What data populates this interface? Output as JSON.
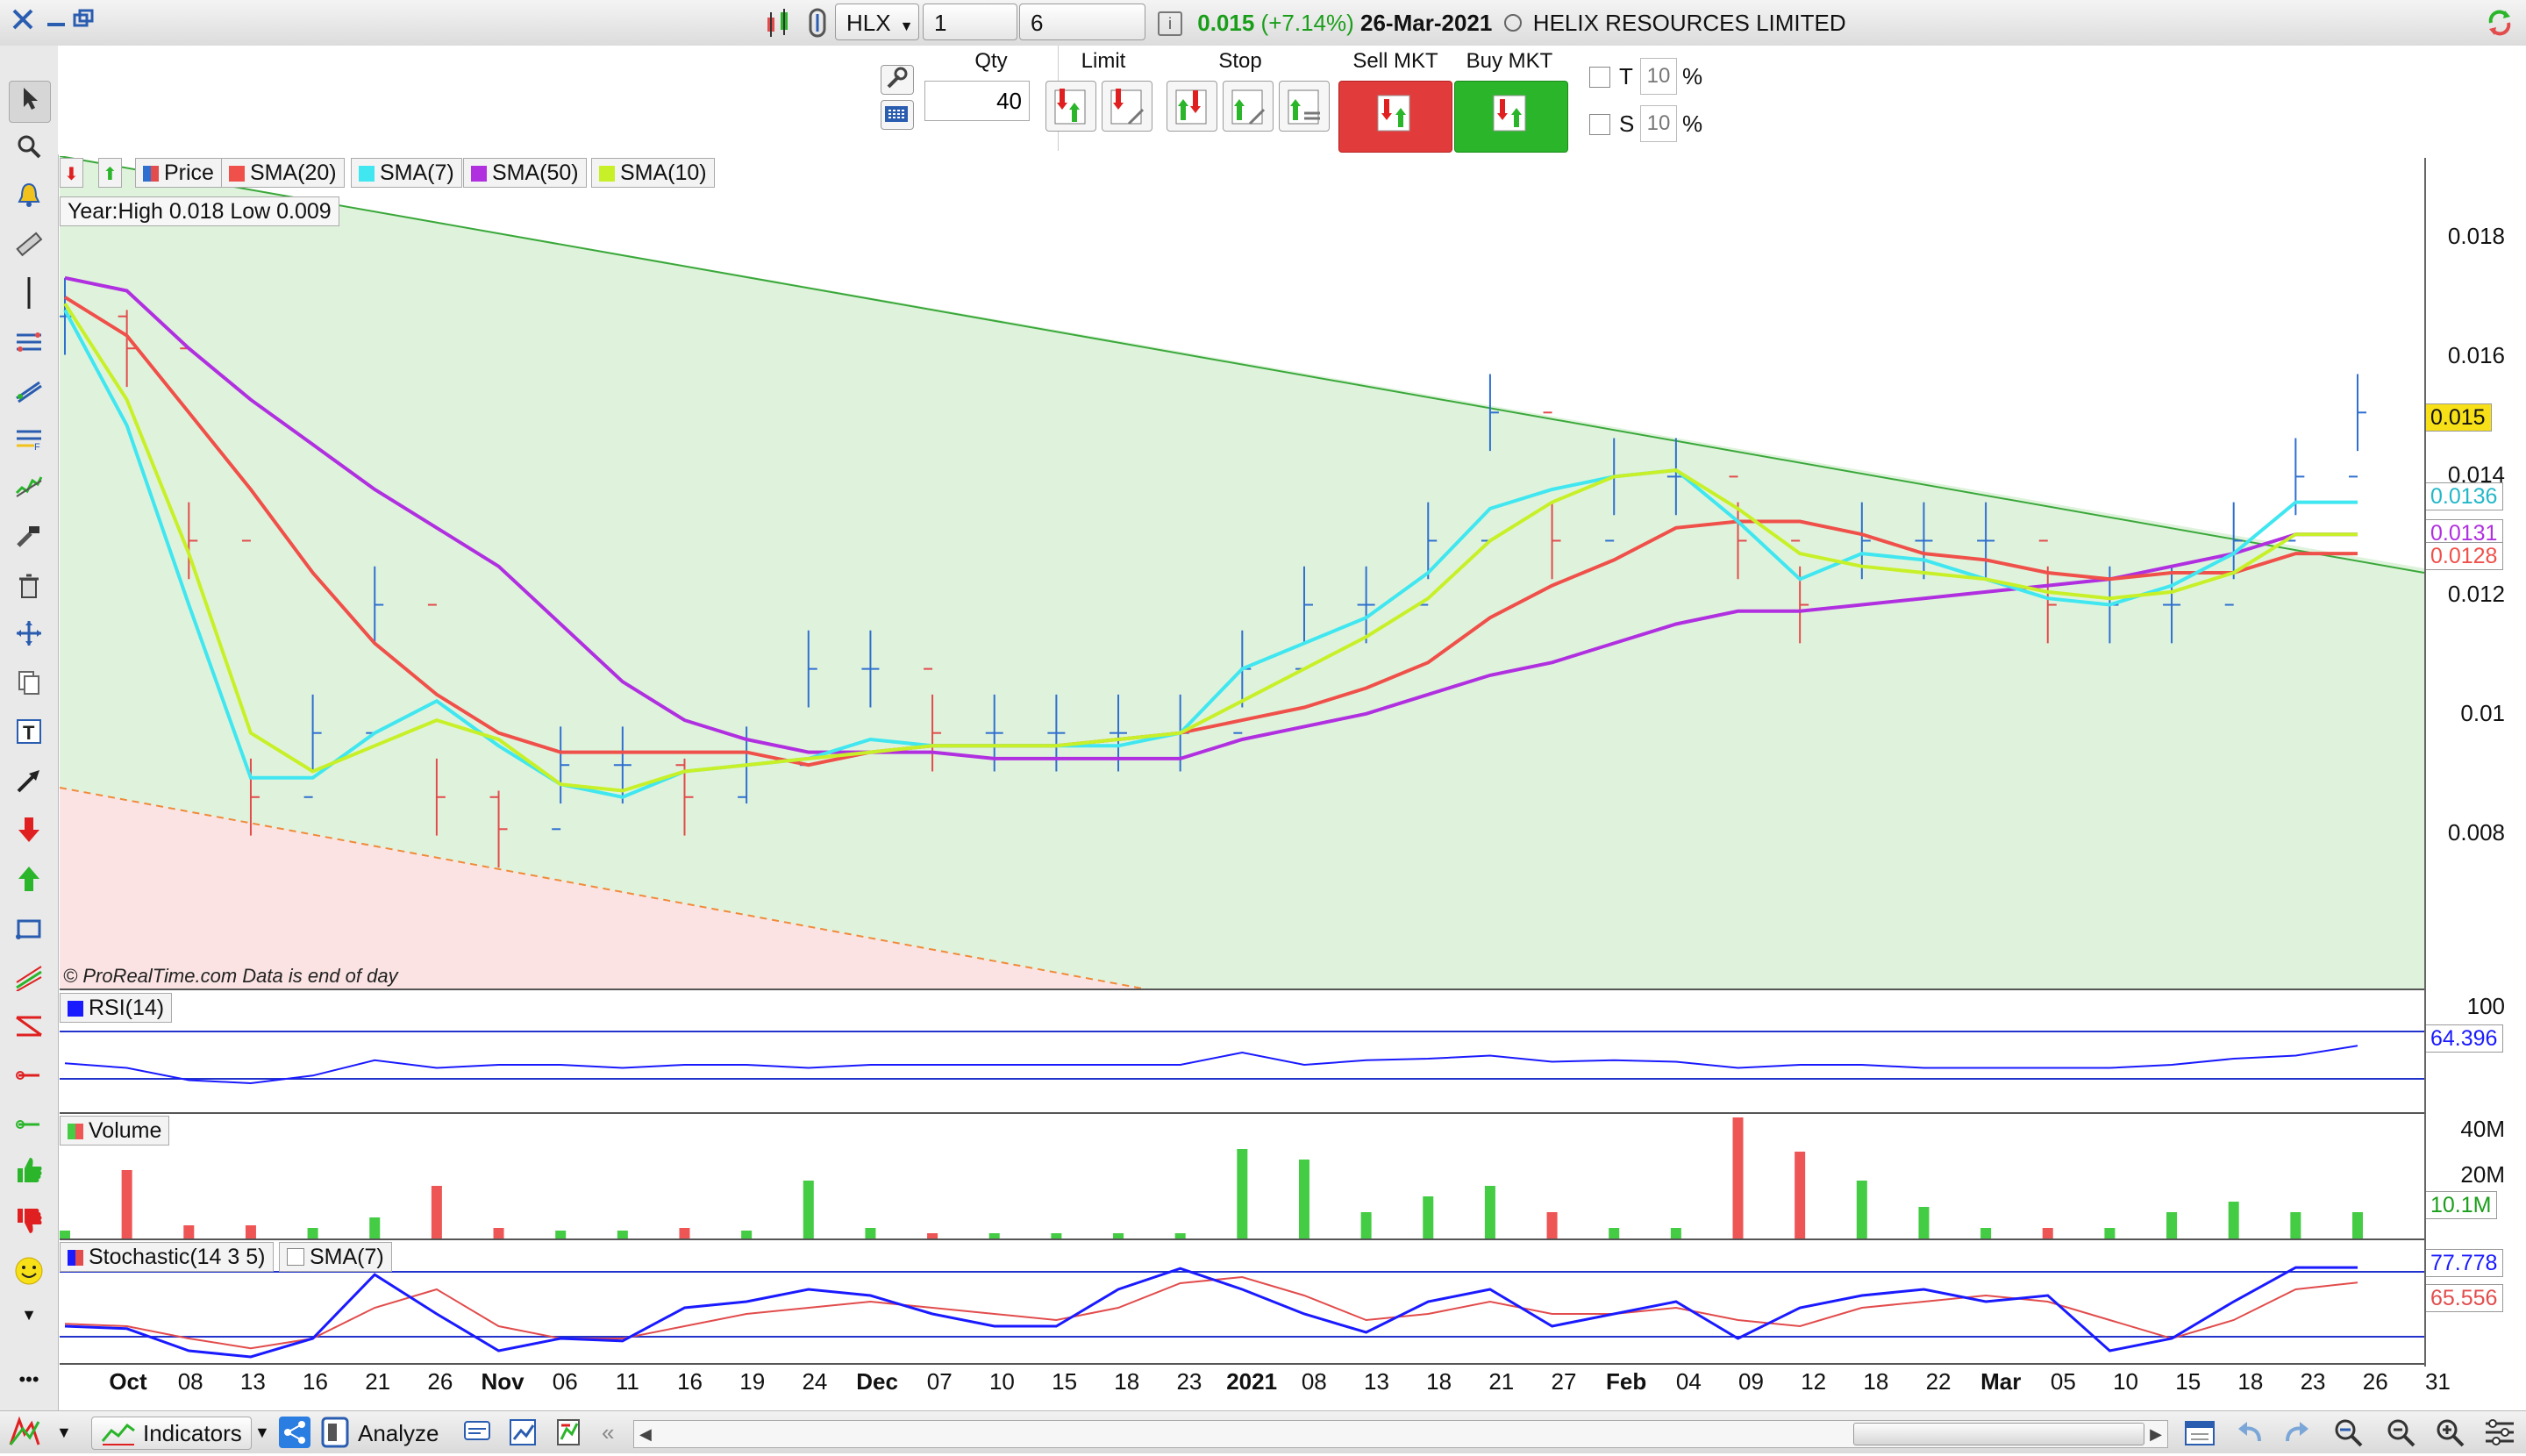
{
  "titlebar": {
    "symbol": "HLX",
    "interval": "1 day",
    "period": "6 months",
    "last_price": "0.015",
    "change": "(+7.14%)",
    "date": "26-Mar-2021",
    "company": "HELIX RESOURCES LIMITED",
    "close_icon": "close-icon",
    "minimize_icon": "minimize-icon",
    "restore_icon": "restore-icon",
    "change_color": "#1a9e1a"
  },
  "orderbar": {
    "qty_label": "Qty",
    "qty_value": "40",
    "limit_label": "Limit",
    "stop_label": "Stop",
    "sell_label": "Sell MKT",
    "buy_label": "Buy MKT",
    "t_label": "T",
    "t_value": "10",
    "s_label": "S",
    "s_value": "10",
    "pct": "%",
    "sell_color": "#e23b3b",
    "buy_color": "#2ab52a"
  },
  "price_pane": {
    "legend": [
      "Price",
      "SMA(20)",
      "SMA(7)",
      "SMA(50)",
      "SMA(10)"
    ],
    "year_range": "Year:High 0.018 Low 0.009",
    "source": "© ProRealTime.com  Data is end of day",
    "yticks": [
      "0.018",
      "0.016",
      "0.014",
      "0.012",
      "0.01",
      "0.008"
    ],
    "badges": {
      "price": "0.015",
      "sma7": "0.0136",
      "sma50": "0.0131",
      "sma20": "0.0128"
    }
  },
  "rsi_pane": {
    "legend": "RSI(14)",
    "ytick": "100",
    "value": "64.396"
  },
  "volume_pane": {
    "legend": "Volume",
    "yticks": [
      "40M",
      "20M"
    ],
    "value": "10.1M"
  },
  "stoch_pane": {
    "legend": "Stochastic(14 3 5)",
    "legend2": "SMA(7)",
    "value1": "77.778",
    "value2": "65.556"
  },
  "x_axis": {
    "labels": [
      {
        "t": "Oct",
        "b": true
      },
      {
        "t": "08"
      },
      {
        "t": "13"
      },
      {
        "t": "16"
      },
      {
        "t": "21"
      },
      {
        "t": "26"
      },
      {
        "t": "Nov",
        "b": true
      },
      {
        "t": "06"
      },
      {
        "t": "11"
      },
      {
        "t": "16"
      },
      {
        "t": "19"
      },
      {
        "t": "24"
      },
      {
        "t": "Dec",
        "b": true
      },
      {
        "t": "07"
      },
      {
        "t": "10"
      },
      {
        "t": "15"
      },
      {
        "t": "18"
      },
      {
        "t": "23"
      },
      {
        "t": "2021",
        "b": true
      },
      {
        "t": "08"
      },
      {
        "t": "13"
      },
      {
        "t": "18"
      },
      {
        "t": "21"
      },
      {
        "t": "27"
      },
      {
        "t": "Feb",
        "b": true
      },
      {
        "t": "04"
      },
      {
        "t": "09"
      },
      {
        "t": "12"
      },
      {
        "t": "18"
      },
      {
        "t": "22"
      },
      {
        "t": "Mar",
        "b": true
      },
      {
        "t": "05"
      },
      {
        "t": "10"
      },
      {
        "t": "15"
      },
      {
        "t": "18"
      },
      {
        "t": "23"
      },
      {
        "t": "26"
      },
      {
        "t": "31"
      }
    ]
  },
  "bottombar": {
    "indicators_label": "Indicators",
    "analyze_label": "Analyze"
  },
  "colors": {
    "sma20": "#f0504a",
    "sma7": "#40e6f0",
    "sma50": "#b030e0",
    "sma10": "#c8f028",
    "bar_up": "#2f6fd0",
    "bar_down": "#e24c4c",
    "vol_up": "#44cc44",
    "vol_down": "#ee5555",
    "uptrend_fill": "#dff3dc",
    "downtrend_fill": "#fbe3e3",
    "trendline": "#3aa83a"
  },
  "chart_data": {
    "type": "line",
    "title": "",
    "x": [
      "Oct",
      "08",
      "13",
      "16",
      "21",
      "26",
      "Nov",
      "06",
      "11",
      "16",
      "19",
      "24",
      "Dec",
      "07",
      "10",
      "15",
      "18",
      "23",
      "2021",
      "08",
      "13",
      "18",
      "21",
      "27",
      "Feb",
      "04",
      "09",
      "12",
      "18",
      "22",
      "Mar",
      "05",
      "10",
      "15",
      "18",
      "23",
      "26",
      "31"
    ],
    "ylim": [
      0.006,
      0.019
    ],
    "series": [
      {
        "name": "SMA(50)",
        "values": [
          0.0171,
          0.0169,
          0.016,
          0.0152,
          0.0145,
          0.0138,
          0.0132,
          0.0126,
          0.0117,
          0.0108,
          0.0102,
          0.0099,
          0.0097,
          0.0097,
          0.0097,
          0.0096,
          0.0096,
          0.0096,
          0.0096,
          0.0099,
          0.0101,
          0.0103,
          0.0106,
          0.0109,
          0.0111,
          0.0114,
          0.0117,
          0.0119,
          0.0119,
          0.012,
          0.0121,
          0.0122,
          0.0123,
          0.0124,
          0.0126,
          0.0128,
          0.0131,
          0.0131
        ]
      },
      {
        "name": "SMA(20)",
        "values": [
          0.0168,
          0.0162,
          0.015,
          0.0138,
          0.0125,
          0.0114,
          0.0106,
          0.01,
          0.0097,
          0.0097,
          0.0097,
          0.0097,
          0.0095,
          0.0097,
          0.0098,
          0.0098,
          0.0098,
          0.0099,
          0.01,
          0.0102,
          0.0104,
          0.0107,
          0.0111,
          0.0118,
          0.0123,
          0.0127,
          0.0132,
          0.0133,
          0.0133,
          0.0131,
          0.0128,
          0.0127,
          0.0125,
          0.0124,
          0.0125,
          0.0125,
          0.0128,
          0.0128
        ]
      },
      {
        "name": "SMA(7)",
        "values": [
          0.0166,
          0.0148,
          0.012,
          0.0093,
          0.0093,
          0.01,
          0.0105,
          0.0098,
          0.0092,
          0.009,
          0.0094,
          0.0095,
          0.0096,
          0.0099,
          0.0098,
          0.0098,
          0.0098,
          0.0098,
          0.01,
          0.011,
          0.0114,
          0.0118,
          0.0125,
          0.0135,
          0.0138,
          0.014,
          0.0141,
          0.0133,
          0.0124,
          0.0128,
          0.0127,
          0.0124,
          0.0121,
          0.012,
          0.0123,
          0.0128,
          0.0136,
          0.0136
        ]
      },
      {
        "name": "SMA(10)",
        "values": [
          0.0167,
          0.0152,
          0.0128,
          0.01,
          0.0094,
          0.0098,
          0.0102,
          0.0099,
          0.0092,
          0.0091,
          0.0094,
          0.0095,
          0.0096,
          0.0097,
          0.0098,
          0.0098,
          0.0098,
          0.0099,
          0.01,
          0.0105,
          0.011,
          0.0115,
          0.0121,
          0.013,
          0.0136,
          0.014,
          0.0141,
          0.0135,
          0.0128,
          0.0126,
          0.0125,
          0.0124,
          0.0122,
          0.0121,
          0.0122,
          0.0125,
          0.0131,
          0.0131
        ]
      }
    ],
    "ohlc_ticks": [
      0.0165,
      0.016,
      0.013,
      0.009,
      0.01,
      0.012,
      0.009,
      0.0085,
      0.0095,
      0.0095,
      0.009,
      0.0095,
      0.011,
      0.011,
      0.01,
      0.01,
      0.01,
      0.01,
      0.01,
      0.011,
      0.012,
      0.012,
      0.013,
      0.015,
      0.013,
      0.014,
      0.014,
      0.013,
      0.012,
      0.013,
      0.013,
      0.013,
      0.012,
      0.012,
      0.012,
      0.013,
      0.014,
      0.015
    ],
    "volume": [
      3,
      26,
      5,
      5,
      4,
      8,
      20,
      4,
      3,
      3,
      4,
      3,
      22,
      4,
      2,
      2,
      2,
      2,
      2,
      34,
      30,
      10,
      16,
      20,
      10,
      4,
      4,
      46,
      33,
      22,
      12,
      4,
      4,
      4,
      10,
      14,
      10,
      10
    ],
    "rsi": [
      53,
      50,
      42,
      40,
      45,
      55,
      50,
      52,
      52,
      50,
      52,
      52,
      50,
      52,
      52,
      52,
      52,
      52,
      52,
      60,
      52,
      55,
      56,
      58,
      54,
      55,
      54,
      50,
      52,
      52,
      50,
      50,
      50,
      50,
      52,
      56,
      58,
      64.396
    ],
    "stoch": [
      30,
      28,
      10,
      5,
      20,
      72,
      40,
      10,
      20,
      18,
      45,
      50,
      60,
      55,
      40,
      30,
      30,
      60,
      77,
      60,
      40,
      25,
      50,
      60,
      30,
      40,
      50,
      20,
      45,
      55,
      60,
      50,
      55,
      10,
      20,
      50,
      77.778,
      77.778
    ],
    "stoch_sma": [
      32,
      30,
      20,
      12,
      20,
      45,
      60,
      30,
      20,
      20,
      30,
      40,
      45,
      50,
      45,
      40,
      35,
      45,
      65,
      70,
      55,
      35,
      40,
      50,
      40,
      40,
      45,
      35,
      30,
      45,
      50,
      55,
      50,
      35,
      20,
      35,
      60,
      65.556
    ]
  }
}
